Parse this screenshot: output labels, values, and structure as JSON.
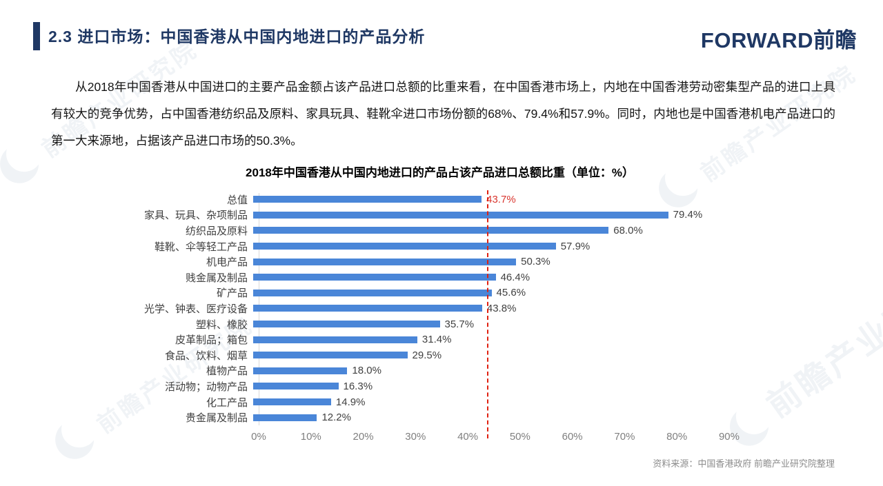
{
  "header": {
    "title": "2.3 进口市场：中国香港从中国内地进口的产品分析",
    "logo_text": "FORWARD前瞻"
  },
  "body": {
    "paragraph": "从2018年中国香港从中国进口的主要产品金额占该产品进口总额的比重来看，在中国香港市场上，内地在中国香港劳动密集型产品的进口上具有较大的竞争优势，占中国香港纺织品及原料、家具玩具、鞋靴伞进口市场份额的68%、79.4%和57.9%。同时，内地也是中国香港机电产品进口的第一大来源地，占据该产品进口市场的50.3%。"
  },
  "chart_data": {
    "type": "bar",
    "orientation": "horizontal",
    "title": "2018年中国香港从中国内地进口的产品占该产品进口总额比重（单位：%）",
    "categories": [
      "总值",
      "家具、玩具、杂项制品",
      "纺织品及原料",
      "鞋靴、伞等轻工产品",
      "机电产品",
      "贱金属及制品",
      "矿产品",
      "光学、钟表、医疗设备",
      "塑料、橡胶",
      "皮革制品；箱包",
      "食品、饮料、烟草",
      "植物产品",
      "活动物；动物产品",
      "化工产品",
      "贵金属及制品"
    ],
    "values": [
      43.7,
      79.4,
      68.0,
      57.9,
      50.3,
      46.4,
      45.6,
      43.8,
      35.7,
      31.4,
      29.5,
      18.0,
      16.3,
      14.9,
      12.2
    ],
    "value_labels": [
      "43.7%",
      "79.4%",
      "68.0%",
      "57.9%",
      "50.3%",
      "46.4%",
      "45.6%",
      "43.8%",
      "35.7%",
      "31.4%",
      "29.5%",
      "18.0%",
      "16.3%",
      "14.9%",
      "12.2%"
    ],
    "highlight_index": 0,
    "highlight_color": "#D9352E",
    "bar_color": "#4A86D8",
    "label_color": "#404040",
    "xlim": [
      0,
      97
    ],
    "x_tick_values": [
      0,
      10,
      20,
      30,
      40,
      50,
      60,
      70,
      80,
      90
    ],
    "x_tick_labels": [
      "0%",
      "10%",
      "20%",
      "30%",
      "40%",
      "50%",
      "60%",
      "70%",
      "80%",
      "90%"
    ],
    "reference_line": {
      "value": 43.7,
      "style": "dashed",
      "color": "#E02010"
    },
    "legend": "none",
    "grid": "off"
  },
  "footer": {
    "source": "资料来源：中国香港政府  前瞻产业研究院整理"
  },
  "watermark": {
    "text": "前瞻产业研究院"
  },
  "colors": {
    "brand_navy": "#1F3864",
    "bar_blue": "#4A86D8",
    "reference_red": "#E02010",
    "highlight_red": "#D9352E",
    "body_text": "#141414",
    "axis_gray": "#7F7F7F"
  }
}
